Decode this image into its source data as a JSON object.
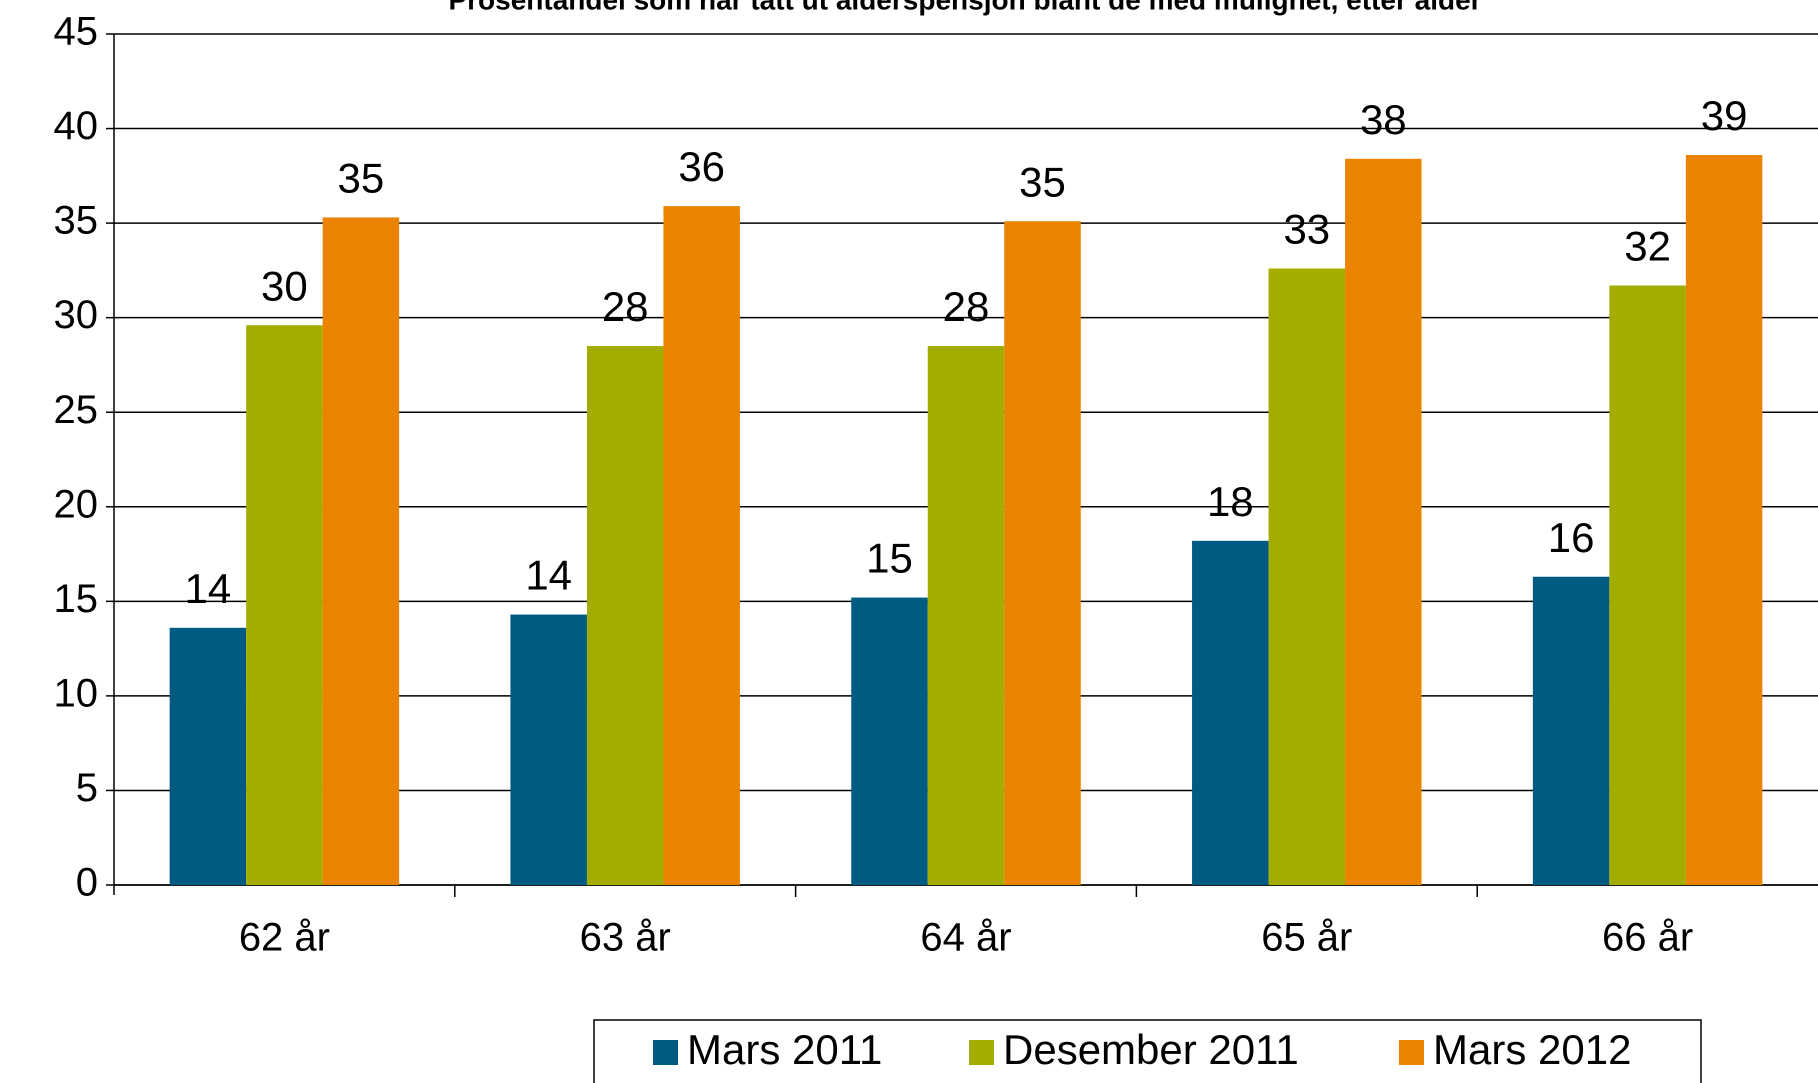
{
  "chart_data": {
    "type": "bar",
    "title": "Prosentandel som har tatt ut alderspensjon blant de med mulighet, etter alder",
    "categories": [
      "62 år",
      "63 år",
      "64 år",
      "65 år",
      "66 år"
    ],
    "series": [
      {
        "name": "Mars 2011",
        "color": "#005b82",
        "values": [
          13.6,
          14.3,
          15.2,
          18.2,
          16.3
        ],
        "value_labels": [
          "14",
          "14",
          "15",
          "18",
          "16"
        ]
      },
      {
        "name": "Desember 2011",
        "color": "#a3ad00",
        "values": [
          29.6,
          28.5,
          28.5,
          32.6,
          31.7
        ],
        "value_labels": [
          "30",
          "28",
          "28",
          "33",
          "32"
        ]
      },
      {
        "name": "Mars 2012",
        "color": "#e98300",
        "values": [
          35.3,
          35.9,
          35.1,
          38.4,
          38.6
        ],
        "value_labels": [
          "35",
          "36",
          "35",
          "38",
          "39"
        ]
      }
    ],
    "ylim": [
      0,
      45
    ],
    "yticks": [
      0,
      5,
      10,
      15,
      20,
      25,
      30,
      35,
      40,
      45
    ],
    "grid": true,
    "legend": "bottom"
  }
}
